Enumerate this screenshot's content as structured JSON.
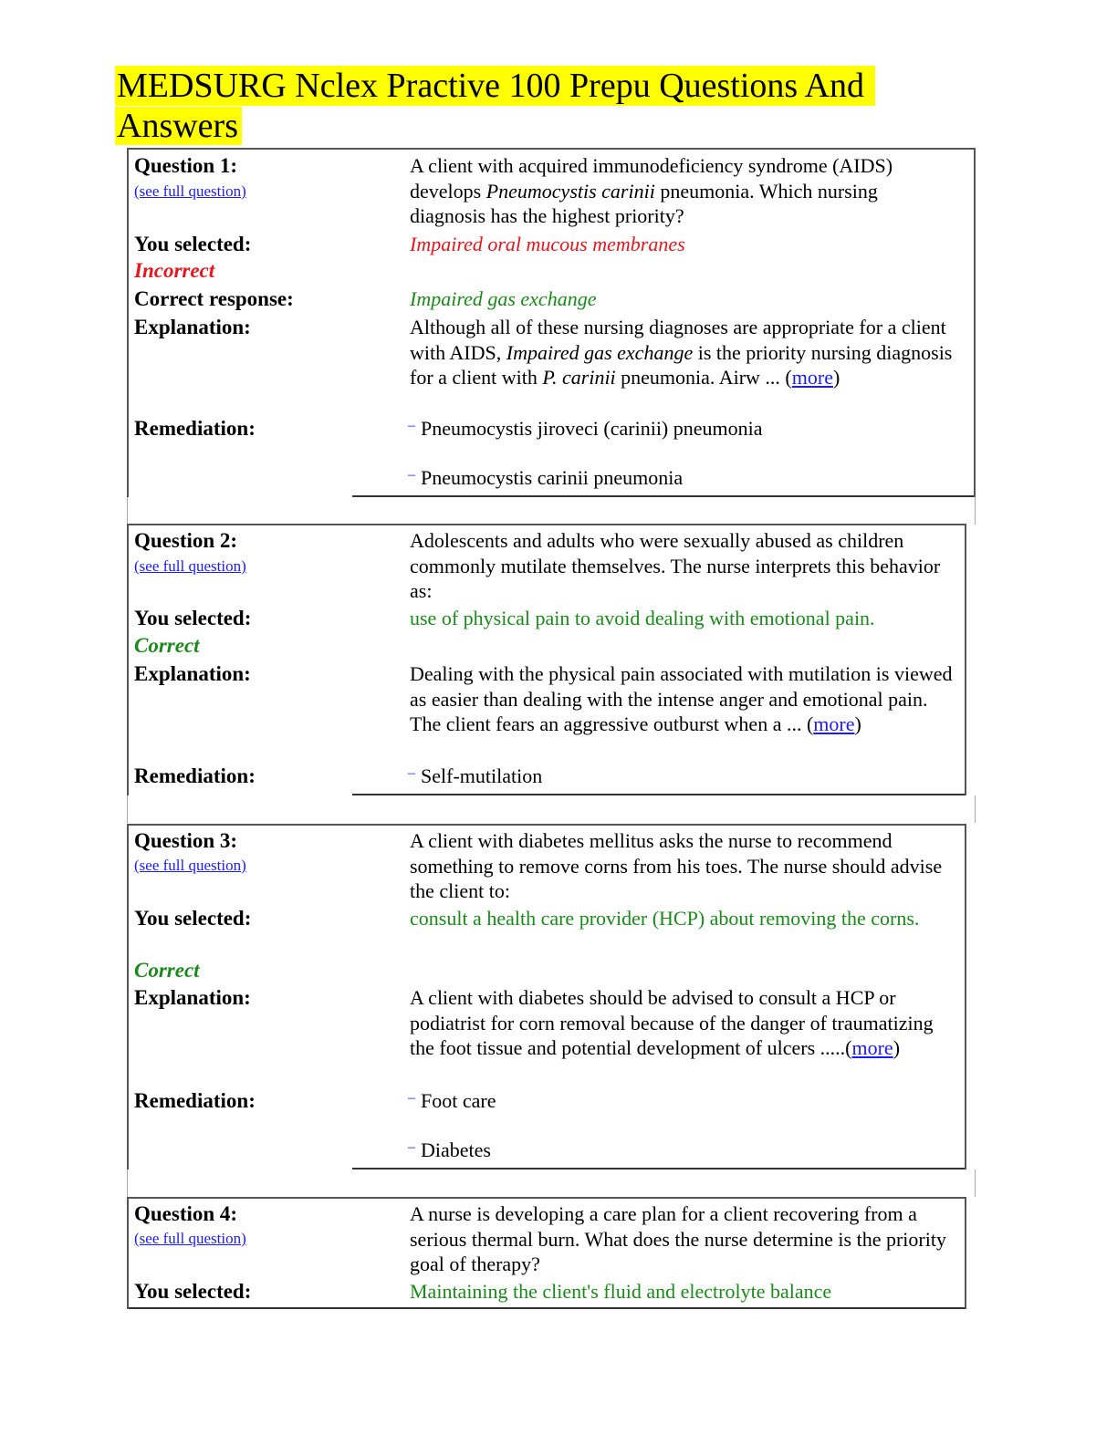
{
  "title_line1": "MEDSURG Nclex Practive 100 Prepu Questions And",
  "title_line2": "Answers",
  "labels": {
    "you_selected": "You selected:",
    "correct_response": "Correct response:",
    "explanation": "Explanation:",
    "remediation": "Remediation:",
    "see_full": "(see full question)",
    "more": "more"
  },
  "q1": {
    "label": "Question 1:",
    "text_a": "A client with acquired immunodeficiency syndrome (AIDS) develops ",
    "text_i": "Pneumocystis carinii",
    "text_b": " pneumonia. Which nursing diagnosis has the highest priority?",
    "selected": "Impaired oral mucous membranes",
    "status": "Incorrect",
    "correct": "Impaired gas exchange",
    "exp_a": "Although all of these nursing diagnoses are appropriate for a client with AIDS, ",
    "exp_i1": "Impaired gas exchange",
    "exp_b": " is the priority nursing diagnosis for a client with ",
    "exp_i2": "P. carinii",
    "exp_c": " pneumonia. Airw ... (",
    "exp_d": ")",
    "rem1": "Pneumocystis jiroveci (carinii) pneumonia",
    "rem2": "Pneumocystis carinii pneumonia"
  },
  "q2": {
    "label": "Question 2:",
    "text": "Adolescents and adults who were sexually abused as children commonly mutilate themselves. The nurse interprets this behavior as:",
    "selected": "use of physical pain to avoid dealing with emotional pain.",
    "status": "Correct",
    "exp": "Dealing with the physical pain associated with mutilation is viewed as easier than dealing with the intense anger and emotional pain. The client fears an aggressive outburst when a ... (",
    "exp_end": ")",
    "rem1": "Self-mutilation"
  },
  "q3": {
    "label": "Question 3:",
    "text": "A client with diabetes mellitus asks the nurse to recommend something to remove corns from his toes. The nurse should advise the client to:",
    "selected": "consult a health care provider (HCP) about removing the corns.",
    "status": "Correct",
    "exp": "A client with diabetes should be advised to consult a HCP or podiatrist for corn removal because of the danger of traumatizing the foot tissue and potential development of ulcers .....(",
    "exp_end": ")",
    "rem1": "Foot care",
    "rem2": "Diabetes"
  },
  "q4": {
    "label": "Question 4:",
    "text": "A nurse is developing a care plan for a client recovering from a serious thermal burn. What does the nurse determine is the priority goal of therapy?",
    "selected": "Maintaining the client's fluid and electrolyte balance"
  },
  "colors": {
    "highlight": "#ffff00",
    "incorrect": "#e8141e",
    "correct": "#1a8a1a",
    "link": "#1a1aff"
  }
}
